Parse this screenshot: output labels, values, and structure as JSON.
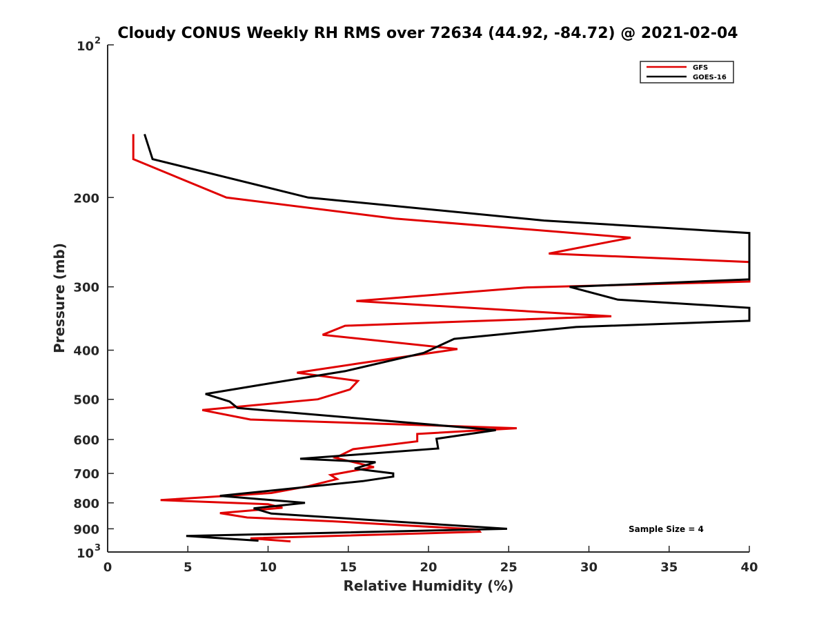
{
  "chart_data": {
    "type": "line",
    "title": "Cloudy CONUS Weekly RH RMS over 72634 (44.92, -84.72) @ 2021-02-04",
    "xlabel": "Relative Humidity (%)",
    "ylabel": "Pressure (mb)",
    "xlim": [
      0,
      40
    ],
    "ylim": [
      100,
      1000
    ],
    "yscale": "log",
    "y_reversed": true,
    "x_ticks": [
      "0",
      "5",
      "10",
      "15",
      "20",
      "25",
      "30",
      "35",
      "40"
    ],
    "y_ticks": [
      {
        "value": 100,
        "label": "10",
        "exp": "2"
      },
      {
        "value": 200,
        "label": "200"
      },
      {
        "value": 300,
        "label": "300"
      },
      {
        "value": 400,
        "label": "400"
      },
      {
        "value": 500,
        "label": "500"
      },
      {
        "value": 600,
        "label": "600"
      },
      {
        "value": 700,
        "label": "700"
      },
      {
        "value": 800,
        "label": "800"
      },
      {
        "value": 900,
        "label": "900"
      },
      {
        "value": 1000,
        "label": "10",
        "exp": "3"
      }
    ],
    "grid": false,
    "legend_position": "top-right",
    "annotation": "Sample Size = 4",
    "series": [
      {
        "name": "GFS",
        "color": "#e00000",
        "points": [
          [
            1.6,
            150
          ],
          [
            1.6,
            168
          ],
          [
            7.4,
            200
          ],
          [
            17.9,
            220
          ],
          [
            32.6,
            240
          ],
          [
            27.5,
            258
          ],
          [
            40,
            268
          ],
          [
            40,
            293
          ],
          [
            26,
            301
          ],
          [
            15.5,
            320
          ],
          [
            31.4,
            343
          ],
          [
            14.8,
            358
          ],
          [
            13.4,
            373
          ],
          [
            21.8,
            398
          ],
          [
            15.6,
            425
          ],
          [
            11.8,
            443
          ],
          [
            15.6,
            460
          ],
          [
            15.1,
            478
          ],
          [
            13.1,
            500
          ],
          [
            5.9,
            525
          ],
          [
            8.9,
            548
          ],
          [
            25.5,
            570
          ],
          [
            19.3,
            585
          ],
          [
            19.3,
            605
          ],
          [
            15.3,
            627
          ],
          [
            14.2,
            652
          ],
          [
            16.6,
            680
          ],
          [
            13.9,
            705
          ],
          [
            14.3,
            718
          ],
          [
            12.5,
            742
          ],
          [
            10.2,
            765
          ],
          [
            3.3,
            790
          ],
          [
            10,
            805
          ],
          [
            10.9,
            818
          ],
          [
            7,
            838
          ],
          [
            8.7,
            855
          ],
          [
            14,
            870
          ],
          [
            23.1,
            903
          ],
          [
            23.2,
            912
          ],
          [
            8.9,
            940
          ],
          [
            11.4,
            953
          ]
        ]
      },
      {
        "name": "GOES-16",
        "color": "#000000",
        "points": [
          [
            2.3,
            150
          ],
          [
            2.8,
            168
          ],
          [
            12.5,
            200
          ],
          [
            27.2,
            222
          ],
          [
            40,
            235
          ],
          [
            40,
            290
          ],
          [
            28.8,
            300
          ],
          [
            31.8,
            318
          ],
          [
            40,
            330
          ],
          [
            40,
            350
          ],
          [
            29.2,
            360
          ],
          [
            21.6,
            380
          ],
          [
            19.7,
            405
          ],
          [
            14.8,
            440
          ],
          [
            10.1,
            465
          ],
          [
            6.1,
            488
          ],
          [
            7.6,
            505
          ],
          [
            8.1,
            520
          ],
          [
            24.2,
            575
          ],
          [
            20.5,
            598
          ],
          [
            20.6,
            625
          ],
          [
            12,
            655
          ],
          [
            16.7,
            665
          ],
          [
            15.4,
            685
          ],
          [
            17.8,
            700
          ],
          [
            17.8,
            710
          ],
          [
            15.9,
            725
          ],
          [
            7,
            775
          ],
          [
            12.3,
            800
          ],
          [
            10.7,
            810
          ],
          [
            9.1,
            820
          ],
          [
            10.2,
            840
          ],
          [
            24.9,
            900
          ],
          [
            4.9,
            930
          ],
          [
            9.4,
            950
          ]
        ]
      }
    ]
  }
}
